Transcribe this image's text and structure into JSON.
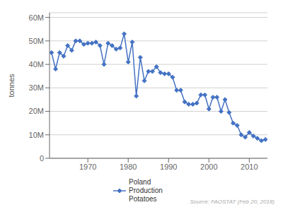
{
  "chart_data": {
    "type": "line",
    "ylabel": "tonnes",
    "annotation": "Source: FAOSTAT (Feb 20, 2018)",
    "x": [
      1961,
      1962,
      1963,
      1964,
      1965,
      1966,
      1967,
      1968,
      1969,
      1970,
      1971,
      1972,
      1973,
      1974,
      1975,
      1976,
      1977,
      1978,
      1979,
      1980,
      1981,
      1982,
      1983,
      1984,
      1985,
      1986,
      1987,
      1988,
      1989,
      1990,
      1991,
      1992,
      1993,
      1994,
      1995,
      1996,
      1997,
      1998,
      1999,
      2000,
      2001,
      2002,
      2003,
      2004,
      2005,
      2006,
      2007,
      2008,
      2009,
      2010,
      2011,
      2012,
      2013,
      2014
    ],
    "series": [
      {
        "name": "Poland\nProduction\nPotatoes",
        "color": "#4472c4",
        "marker": "diamond",
        "values": [
          45000000,
          38000000,
          45000000,
          43500000,
          48000000,
          46000000,
          50000000,
          50000000,
          48500000,
          49000000,
          49000000,
          49500000,
          48000000,
          40000000,
          49000000,
          48000000,
          46500000,
          47000000,
          53000000,
          41000000,
          49500000,
          26500000,
          43000000,
          33000000,
          37000000,
          37000000,
          39000000,
          36500000,
          36000000,
          36000000,
          34500000,
          29000000,
          29000000,
          24000000,
          23000000,
          23000000,
          23500000,
          27000000,
          27000000,
          21000000,
          26000000,
          26000000,
          20000000,
          25000000,
          19500000,
          15000000,
          14000000,
          10000000,
          9000000,
          11000000,
          9500000,
          8500000,
          7500000,
          8000000
        ]
      }
    ],
    "xlim": [
      1960.5,
      2014.5
    ],
    "xticks": [
      1970,
      1980,
      1990,
      2000,
      2010
    ],
    "ylim": [
      0,
      62000000
    ],
    "yticks": [
      0,
      {
        "value": 10000000,
        "label": "10M"
      },
      {
        "value": 20000000,
        "label": "20M"
      },
      {
        "value": 30000000,
        "label": "30M"
      },
      {
        "value": 40000000,
        "label": "40M"
      },
      {
        "value": 50000000,
        "label": "50M"
      },
      {
        "value": 60000000,
        "label": "60M"
      }
    ],
    "grid": "y",
    "legend": "bottom"
  }
}
